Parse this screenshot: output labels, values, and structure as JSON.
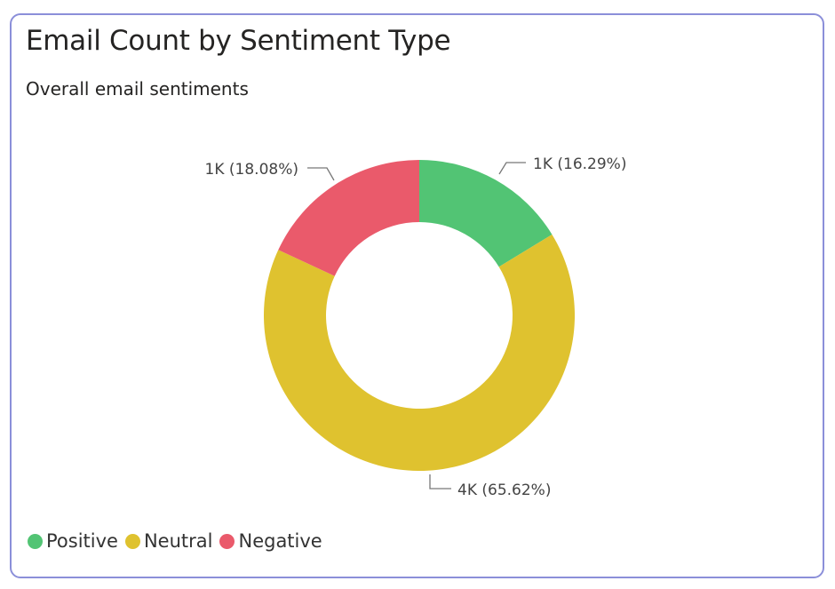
{
  "header": {
    "title": "Email Count by Sentiment Type",
    "subtitle": "Overall email sentiments"
  },
  "chart_data": {
    "type": "pie",
    "variant": "donut",
    "title": "Email Count by Sentiment Type",
    "subtitle": "Overall email sentiments",
    "legend_position": "bottom-left",
    "series": [
      {
        "name": "Positive",
        "percent": 16.29,
        "label": "1K (16.29%)",
        "color": "#52C474"
      },
      {
        "name": "Neutral",
        "percent": 65.62,
        "label": "4K (65.62%)",
        "color": "#DFC22F"
      },
      {
        "name": "Negative",
        "percent": 18.08,
        "label": "1K (18.08%)",
        "color": "#EA5A6B"
      }
    ]
  }
}
